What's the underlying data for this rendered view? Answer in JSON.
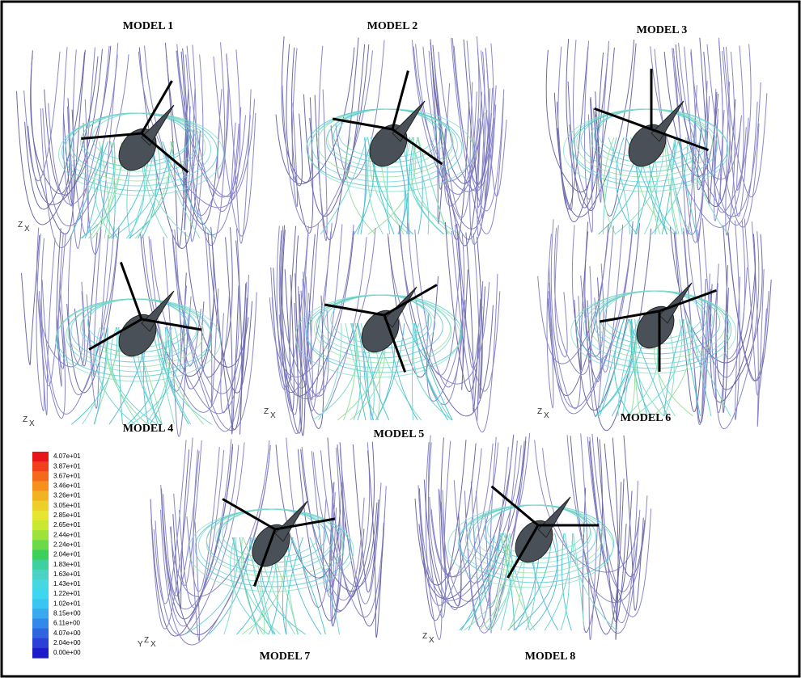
{
  "panels": [
    {
      "label": "MODEL 1",
      "triad": [
        "Z",
        "X"
      ]
    },
    {
      "label": "MODEL 2",
      "triad": []
    },
    {
      "label": "MODEL 3",
      "triad": []
    },
    {
      "label": "MODEL 4",
      "triad": [
        "Z",
        "X"
      ]
    },
    {
      "label": "MODEL 5",
      "triad": [
        "Z",
        "X"
      ]
    },
    {
      "label": "MODEL 6",
      "triad": [
        "Z",
        "X"
      ]
    },
    {
      "label": "MODEL 7",
      "triad": [
        "Y",
        "Z",
        "X"
      ]
    },
    {
      "label": "MODEL 8",
      "triad": [
        "Z",
        "X"
      ]
    }
  ],
  "colorbar": {
    "labels": [
      "4.07e+01",
      "3.87e+01",
      "3.67e+01",
      "3.46e+01",
      "3.26e+01",
      "3.05e+01",
      "2.85e+01",
      "2.65e+01",
      "2.44e+01",
      "2.24e+01",
      "2.04e+01",
      "1.83e+01",
      "1.63e+01",
      "1.43e+01",
      "1.22e+01",
      "1.02e+01",
      "8.15e+00",
      "6.11e+00",
      "4.07e+00",
      "2.04e+00",
      "0.00e+00"
    ]
  }
}
